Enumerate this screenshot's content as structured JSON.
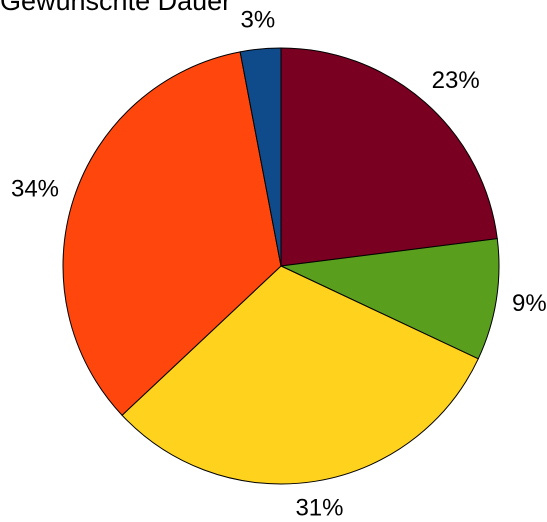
{
  "chart_data": {
    "type": "pie",
    "title": "Gewünschte Dauer",
    "slices": [
      {
        "value": 23,
        "label": "23%",
        "color": "#7a0022"
      },
      {
        "value": 9,
        "label": "9%",
        "color": "#5a9e1e"
      },
      {
        "value": 31,
        "label": "31%",
        "color": "#ffd21e"
      },
      {
        "value": 34,
        "label": "34%",
        "color": "#ff460c"
      },
      {
        "value": 3,
        "label": "3%",
        "color": "#0f4a8a"
      }
    ],
    "start_angle": "12 o'clock",
    "direction": "clockwise"
  }
}
